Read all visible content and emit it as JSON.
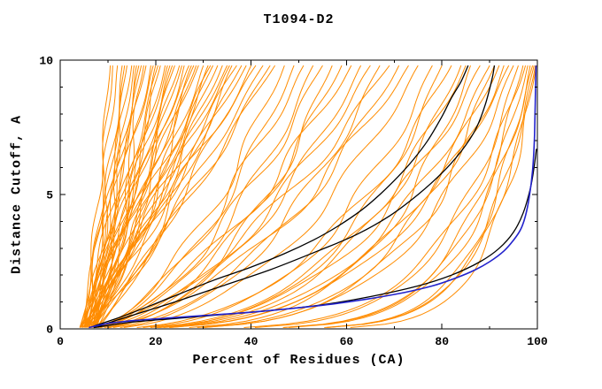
{
  "chart_data": {
    "type": "line",
    "title": "T1094-D2",
    "xlabel": "Percent of Residues (CA)",
    "ylabel": "Distance Cutoff, A",
    "xlim": [
      0,
      100
    ],
    "ylim": [
      0,
      10
    ],
    "xticks": {
      "major": [
        0,
        20,
        40,
        60,
        80,
        100
      ],
      "minor_step": 10
    },
    "yticks": {
      "major": [
        0,
        5,
        10
      ],
      "minor_step": 1
    },
    "grid": false,
    "legend": "none",
    "colors": {
      "models": "#ff8c00",
      "reference": "#000000",
      "best": "#2222cc",
      "frame": "#000000"
    },
    "series": {
      "best_model": {
        "color_key": "best",
        "points": [
          [
            6,
            0.05
          ],
          [
            10,
            0.2
          ],
          [
            16,
            0.32
          ],
          [
            24,
            0.42
          ],
          [
            32,
            0.52
          ],
          [
            40,
            0.62
          ],
          [
            48,
            0.75
          ],
          [
            56,
            0.9
          ],
          [
            64,
            1.1
          ],
          [
            72,
            1.35
          ],
          [
            78,
            1.6
          ],
          [
            83,
            1.9
          ],
          [
            87,
            2.2
          ],
          [
            90,
            2.5
          ],
          [
            93,
            2.9
          ],
          [
            95,
            3.3
          ],
          [
            96.5,
            3.7
          ],
          [
            97.5,
            4.2
          ],
          [
            98.3,
            4.9
          ],
          [
            99,
            5.9
          ],
          [
            99.4,
            7.2
          ],
          [
            99.7,
            9.8
          ]
        ]
      },
      "reference_models": [
        {
          "color_key": "reference",
          "points": [
            [
              7,
              0.1
            ],
            [
              12,
              0.4
            ],
            [
              18,
              0.8
            ],
            [
              25,
              1.3
            ],
            [
              32,
              1.8
            ],
            [
              40,
              2.3
            ],
            [
              47,
              2.8
            ],
            [
              53,
              3.3
            ],
            [
              58,
              3.8
            ],
            [
              63,
              4.4
            ],
            [
              67,
              5.0
            ],
            [
              71,
              5.7
            ],
            [
              74,
              6.3
            ],
            [
              77,
              7.0
            ],
            [
              80,
              7.9
            ],
            [
              82,
              8.6
            ],
            [
              84,
              9.2
            ],
            [
              85.5,
              9.8
            ]
          ]
        },
        {
          "color_key": "reference",
          "points": [
            [
              8,
              0.1
            ],
            [
              15,
              0.5
            ],
            [
              24,
              1.0
            ],
            [
              34,
              1.6
            ],
            [
              44,
              2.2
            ],
            [
              54,
              2.9
            ],
            [
              62,
              3.5
            ],
            [
              69,
              4.2
            ],
            [
              75,
              5.0
            ],
            [
              80,
              5.8
            ],
            [
              84,
              6.6
            ],
            [
              87,
              7.4
            ],
            [
              89,
              8.3
            ],
            [
              90.5,
              9.3
            ],
            [
              91,
              9.8
            ]
          ]
        },
        {
          "color_key": "reference",
          "points": [
            [
              7,
              0.05
            ],
            [
              15,
              0.25
            ],
            [
              25,
              0.4
            ],
            [
              35,
              0.55
            ],
            [
              45,
              0.7
            ],
            [
              55,
              0.9
            ],
            [
              65,
              1.2
            ],
            [
              75,
              1.6
            ],
            [
              82,
              2.0
            ],
            [
              88,
              2.5
            ],
            [
              92,
              3.0
            ],
            [
              95,
              3.6
            ],
            [
              97,
              4.3
            ],
            [
              98.5,
              5.2
            ],
            [
              99.3,
              6.0
            ],
            [
              99.8,
              6.7
            ]
          ]
        }
      ],
      "model_ensemble": {
        "color_key": "models",
        "count": 85,
        "y_top": 9.8,
        "param_format": [
          "x_start",
          "x_at_top",
          "shape_exp",
          "wiggle_amp",
          "wiggle_phase"
        ],
        "params": [
          [
            5,
            10.5,
            0.9,
            0.6,
            0
          ],
          [
            6,
            11,
            1.0,
            0.8,
            1
          ],
          [
            4.5,
            12,
            0.85,
            0.7,
            2
          ],
          [
            7,
            13,
            1.05,
            0.9,
            3
          ],
          [
            5,
            13.5,
            0.8,
            0.6,
            4
          ],
          [
            6.5,
            14,
            0.95,
            1.0,
            5
          ],
          [
            4,
            15,
            0.9,
            0.8,
            0.5
          ],
          [
            7.5,
            15.5,
            1.1,
            0.7,
            1.5
          ],
          [
            5.5,
            16,
            0.85,
            1.1,
            2.5
          ],
          [
            6,
            16.5,
            1.0,
            0.9,
            3.5
          ],
          [
            4.5,
            17,
            0.9,
            0.7,
            4.5
          ],
          [
            7,
            17.5,
            0.8,
            1.2,
            5.5
          ],
          [
            5,
            18,
            1.05,
            0.8,
            0.2
          ],
          [
            6.5,
            19,
            0.9,
            1.0,
            1.2
          ],
          [
            4,
            19.5,
            0.95,
            0.9,
            2.2
          ],
          [
            7.5,
            20,
            0.85,
            1.3,
            3.2
          ],
          [
            5.5,
            20.5,
            1.0,
            0.8,
            4.2
          ],
          [
            6,
            21,
            0.9,
            1.1,
            5.2
          ],
          [
            4.5,
            22,
            0.8,
            1.0,
            0.7
          ],
          [
            7,
            22.5,
            1.05,
            0.9,
            1.7
          ],
          [
            5,
            23,
            0.9,
            1.2,
            2.7
          ],
          [
            6.5,
            23.5,
            0.95,
            0.8,
            3.7
          ],
          [
            4,
            24,
            0.85,
            1.0,
            4.7
          ],
          [
            7.5,
            25,
            1.0,
            1.3,
            5.7
          ],
          [
            5.5,
            25.5,
            0.9,
            0.9,
            0.4
          ],
          [
            6,
            26,
            0.8,
            1.1,
            1.4
          ],
          [
            4.5,
            27,
            1.05,
            1.0,
            2.4
          ],
          [
            7,
            27.5,
            0.9,
            1.2,
            3.4
          ],
          [
            5,
            28,
            0.95,
            0.8,
            4.4
          ],
          [
            6.5,
            28.5,
            0.85,
            1.4,
            5.4
          ],
          [
            4,
            29,
            1.0,
            1.0,
            0.9
          ],
          [
            7.5,
            30,
            0.9,
            1.2,
            1.9
          ],
          [
            5.5,
            31,
            0.8,
            1.0,
            2.9
          ],
          [
            6,
            31.5,
            1.05,
            1.3,
            3.9
          ],
          [
            4.5,
            32,
            0.9,
            0.9,
            4.9
          ],
          [
            7,
            33,
            0.95,
            1.1,
            5.9
          ],
          [
            5,
            34,
            0.85,
            1.3,
            0.3
          ],
          [
            6.5,
            35,
            1.0,
            1.0,
            1.3
          ],
          [
            4,
            35.5,
            0.9,
            1.2,
            2.3
          ],
          [
            7.5,
            36,
            0.8,
            1.1,
            3.3
          ],
          [
            5.5,
            37,
            1.05,
            1.4,
            4.3
          ],
          [
            6,
            38,
            0.9,
            1.0,
            5.3
          ],
          [
            4.5,
            39,
            0.95,
            1.2,
            0.8
          ],
          [
            7,
            40,
            0.85,
            1.1,
            1.8
          ],
          [
            5,
            41,
            1.0,
            1.4,
            2.8
          ],
          [
            6.5,
            42.5,
            0.9,
            1.0,
            3.8
          ],
          [
            4,
            44,
            0.8,
            1.3,
            4.8
          ],
          [
            7.5,
            45,
            0.95,
            1.1,
            5.8
          ],
          [
            6,
            47,
            0.6,
            1.5,
            0.6
          ],
          [
            5,
            49,
            0.55,
            1.2,
            1.6
          ],
          [
            7,
            51,
            0.65,
            1.6,
            2.6
          ],
          [
            4.5,
            53,
            0.5,
            1.3,
            3.6
          ],
          [
            6.5,
            55,
            0.6,
            1.7,
            4.6
          ],
          [
            5.5,
            57,
            0.45,
            1.4,
            5.6
          ],
          [
            7.5,
            59,
            0.55,
            1.5,
            0.1
          ],
          [
            4,
            61,
            0.6,
            1.8,
            1.1
          ],
          [
            6,
            63,
            0.5,
            1.3,
            2.1
          ],
          [
            5,
            65,
            0.55,
            1.6,
            3.1
          ],
          [
            7,
            67,
            0.45,
            1.4,
            4.1
          ],
          [
            4.5,
            69,
            0.6,
            1.7,
            5.1
          ],
          [
            6.5,
            71,
            0.5,
            1.5,
            0.6
          ],
          [
            5.5,
            73,
            0.55,
            1.8,
            1.6
          ],
          [
            7,
            75,
            0.45,
            1.4,
            2.6
          ],
          [
            6,
            78,
            0.35,
            1.5,
            3.6
          ],
          [
            5,
            80,
            0.3,
            1.2,
            4.6
          ],
          [
            7,
            82,
            0.4,
            1.6,
            5.6
          ],
          [
            4.5,
            84,
            0.3,
            1.3,
            0.2
          ],
          [
            6.5,
            85,
            0.35,
            1.5,
            1.2
          ],
          [
            5.5,
            86,
            0.25,
            1.2,
            2.2
          ],
          [
            7.5,
            88,
            0.35,
            1.6,
            3.2
          ],
          [
            4,
            90,
            0.3,
            1.3,
            4.2
          ],
          [
            6,
            91,
            0.25,
            1.4,
            5.2
          ],
          [
            5,
            92,
            0.3,
            1.2,
            0.7
          ],
          [
            7,
            93,
            0.25,
            1.5,
            1.7
          ],
          [
            4.5,
            94,
            0.3,
            1.2,
            2.7
          ],
          [
            6,
            95,
            0.25,
            1.3,
            3.7
          ],
          [
            6,
            96,
            0.18,
            0.9,
            4.7
          ],
          [
            5,
            97,
            0.15,
            0.8,
            5.7
          ],
          [
            7,
            97.5,
            0.2,
            1.0,
            0.3
          ],
          [
            4.5,
            98,
            0.15,
            0.7,
            1.3
          ],
          [
            6.5,
            98.5,
            0.12,
            0.8,
            2.3
          ],
          [
            5.5,
            99,
            0.15,
            0.9,
            3.3
          ],
          [
            7,
            99.3,
            0.12,
            0.7,
            4.3
          ],
          [
            5,
            99.6,
            0.1,
            0.8,
            5.3
          ],
          [
            6,
            99.8,
            0.12,
            0.6,
            0.9
          ]
        ]
      }
    }
  }
}
